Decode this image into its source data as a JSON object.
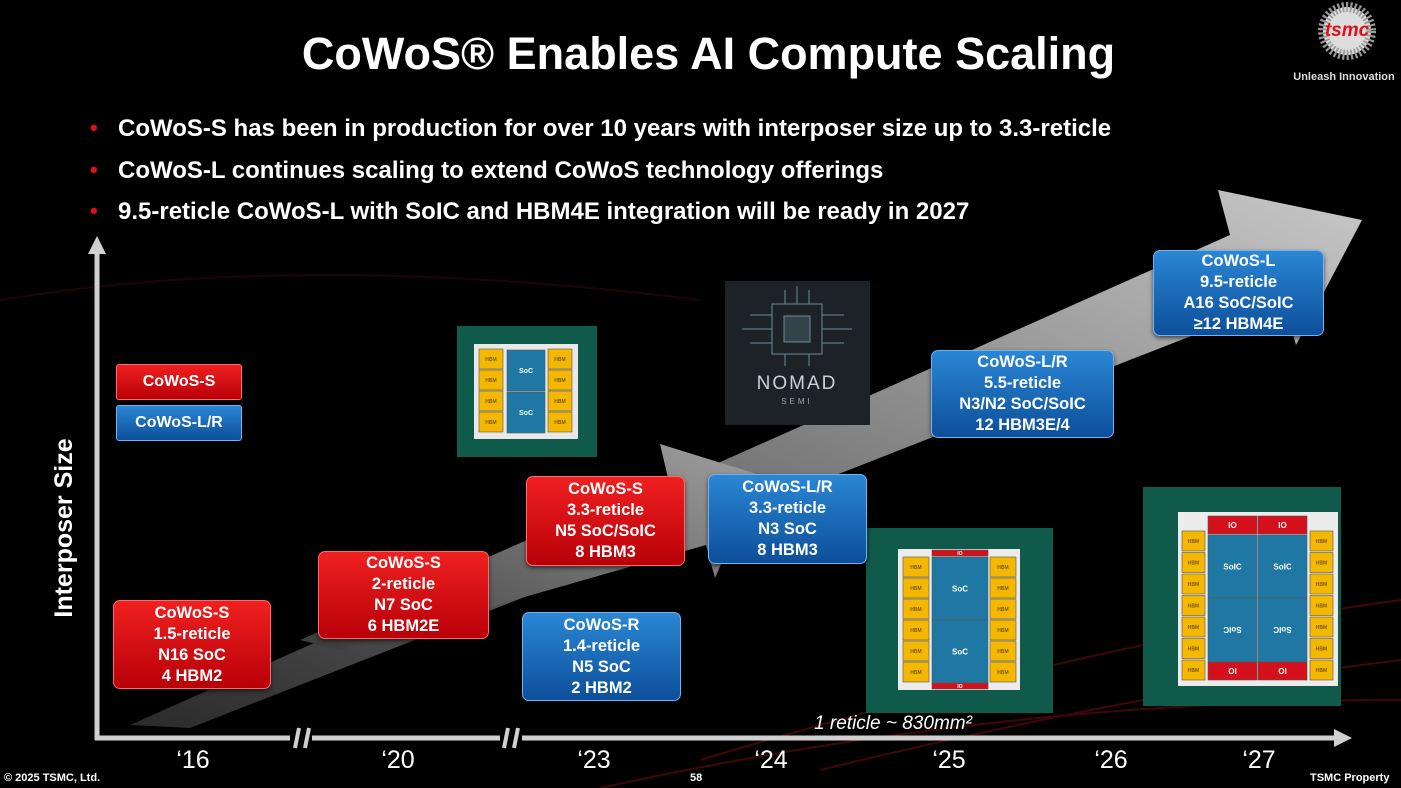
{
  "header": {
    "title": "CoWoS® Enables AI Compute Scaling",
    "logo": "tsmc",
    "tagline": "Unleash Innovation"
  },
  "bullets": [
    "CoWoS-S has been in production for over 10 years with interposer size up to 3.3-reticle",
    "CoWoS-L continues scaling to extend CoWoS technology offerings",
    "9.5-reticle CoWoS-L with SoIC and HBM4E integration will be ready in 2027"
  ],
  "legend": [
    "CoWoS-S",
    "CoWoS-L/R"
  ],
  "axis": {
    "y_label": "Interposer Size",
    "x_labels": [
      "‘16",
      "‘20",
      "‘23",
      "‘24",
      "‘25",
      "‘26",
      "‘27"
    ],
    "note": "1 reticle ~ 830mm²"
  },
  "boxes": [
    {
      "lines": [
        "CoWoS-S",
        "1.5-reticle",
        "N16 SoC",
        "4 HBM2"
      ]
    },
    {
      "lines": [
        "CoWoS-S",
        "2-reticle",
        "N7 SoC",
        "6 HBM2E"
      ]
    },
    {
      "lines": [
        "CoWoS-S",
        "3.3-reticle",
        "N5 SoC/SoIC",
        "8 HBM3"
      ]
    },
    {
      "lines": [
        "CoWoS-R",
        "1.4-reticle",
        "N5 SoC",
        "2 HBM2"
      ]
    },
    {
      "lines": [
        "CoWoS-L/R",
        "3.3-reticle",
        "N3 SoC",
        "8 HBM3"
      ]
    },
    {
      "lines": [
        "CoWoS-L/R",
        "5.5-reticle",
        "N3/N2 SoC/SoIC",
        "12 HBM3E/4"
      ]
    },
    {
      "lines": [
        "CoWoS-L",
        "9.5-reticle",
        "A16 SoC/SoIC",
        "≥12 HBM4E"
      ]
    }
  ],
  "chip_labels": {
    "hbm": "HBM",
    "soc": "SoC",
    "io": "IO",
    "soic": "SoIC"
  },
  "nomad": {
    "name": "NOMAD",
    "sub": "SEMI"
  },
  "footer": {
    "copyright": "© 2025 TSMC, Ltd.",
    "page": "58",
    "property": "TSMC Property"
  }
}
